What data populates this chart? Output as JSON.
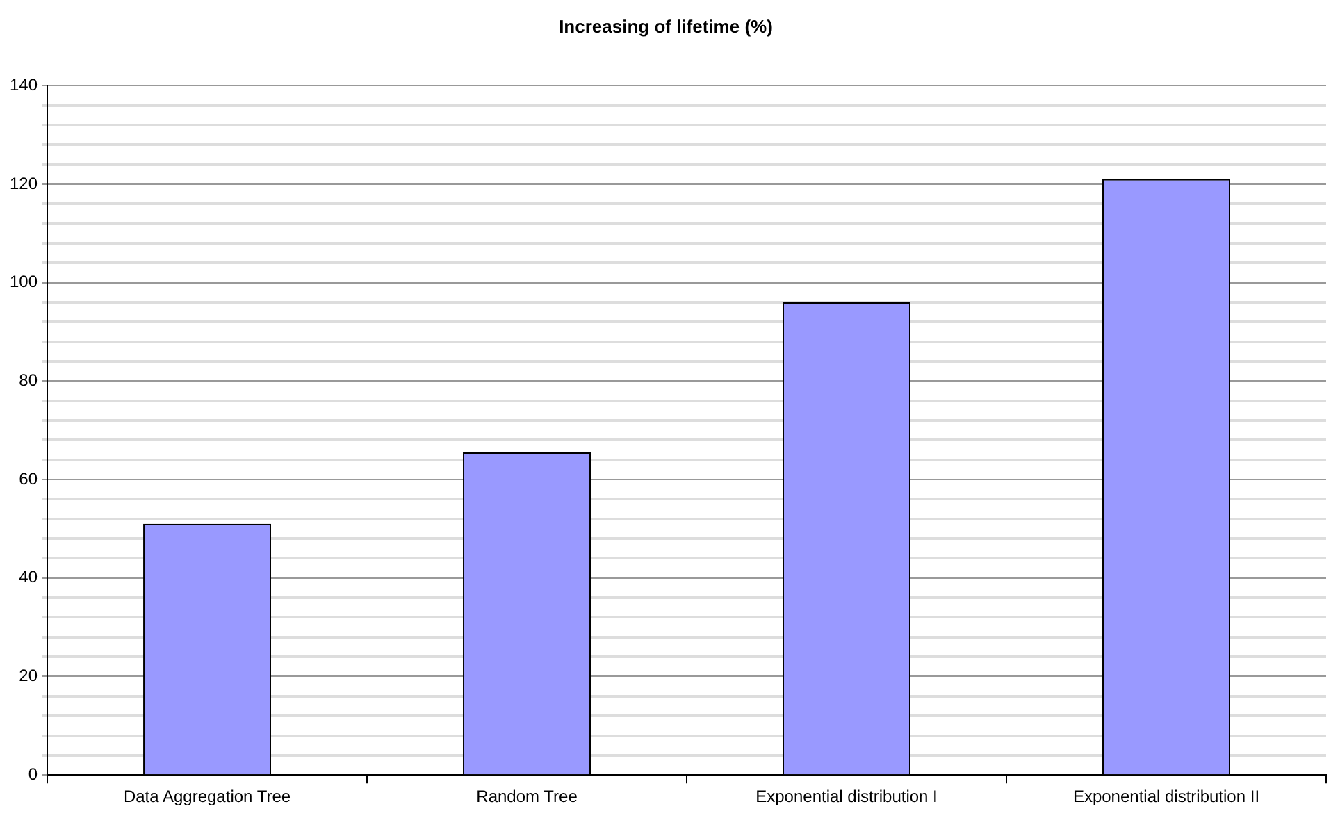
{
  "chart_data": {
    "type": "bar",
    "title": "Increasing of lifetime (%)",
    "categories": [
      "Data Aggregation Tree",
      "Random Tree",
      "Exponential distribution I",
      "Exponential distribution II"
    ],
    "values": [
      51,
      65.5,
      96,
      121
    ],
    "color": "#9999ff",
    "ylim": [
      0,
      140
    ],
    "yticks": [
      0,
      {
        "value": 4,
        "label": null
      },
      {
        "value": 8,
        "label": null
      },
      {
        "value": 12,
        "label": null
      },
      {
        "value": 16,
        "label": null
      },
      20,
      {
        "value": 24,
        "label": null
      },
      {
        "value": 28,
        "label": null
      },
      {
        "value": 32,
        "label": null
      },
      {
        "value": 36,
        "label": null
      },
      40,
      {
        "value": 44,
        "label": null
      },
      {
        "value": 48,
        "label": null
      },
      {
        "value": 52,
        "label": null
      },
      {
        "value": 56,
        "label": null
      },
      60,
      {
        "value": 64,
        "label": null
      },
      {
        "value": 68,
        "label": null
      },
      {
        "value": 72,
        "label": null
      },
      {
        "value": 76,
        "label": null
      },
      80,
      {
        "value": 84,
        "label": null
      },
      {
        "value": 88,
        "label": null
      },
      {
        "value": 92,
        "label": null
      },
      {
        "value": 96,
        "label": null
      },
      100,
      {
        "value": 104,
        "label": null
      },
      {
        "value": 108,
        "label": null
      },
      {
        "value": 112,
        "label": null
      },
      {
        "value": 116,
        "label": null
      },
      120,
      {
        "value": 124,
        "label": null
      },
      {
        "value": 128,
        "label": null
      },
      {
        "value": 132,
        "label": null
      },
      {
        "value": 136,
        "label": null
      },
      140
    ],
    "grid": "y"
  }
}
